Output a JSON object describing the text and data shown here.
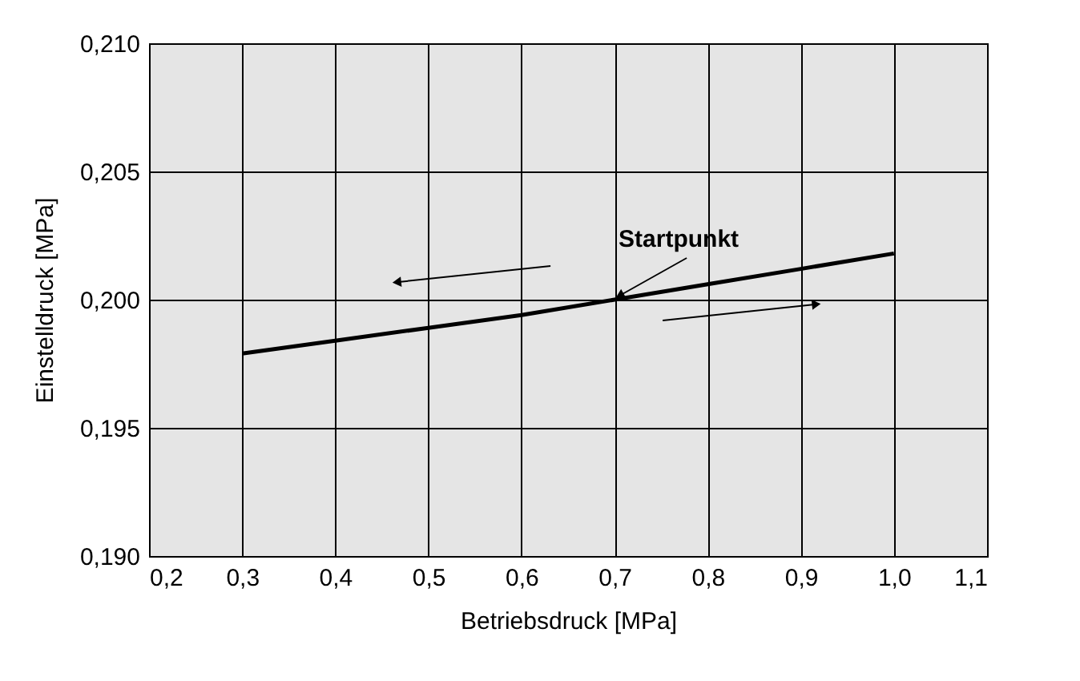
{
  "chart_data": {
    "type": "line",
    "xlabel": "Betriebsdruck [MPa]",
    "ylabel": "Einstelldruck [MPa]",
    "x": [
      0.3,
      0.4,
      0.5,
      0.6,
      0.7,
      0.8,
      0.9,
      1.0
    ],
    "series": [
      {
        "color": "#000000",
        "values": [
          0.1979,
          0.1984,
          0.1989,
          0.1994,
          0.2,
          0.2006,
          0.2012,
          0.2018
        ]
      }
    ],
    "xlim": [
      0.2,
      1.1
    ],
    "ylim": [
      0.19,
      0.21
    ],
    "xticks": [
      {
        "value": 0.2,
        "label": "0,2"
      },
      {
        "value": 0.3,
        "label": "0,3"
      },
      {
        "value": 0.4,
        "label": "0,4"
      },
      {
        "value": 0.5,
        "label": "0,5"
      },
      {
        "value": 0.6,
        "label": "0,6"
      },
      {
        "value": 0.7,
        "label": "0,7"
      },
      {
        "value": 0.8,
        "label": "0,8"
      },
      {
        "value": 0.9,
        "label": "0,9"
      },
      {
        "value": 1.0,
        "label": "1,0"
      },
      {
        "value": 1.1,
        "label": "1,1"
      }
    ],
    "yticks": [
      {
        "value": 0.19,
        "label": "0,190"
      },
      {
        "value": 0.195,
        "label": "0,195"
      },
      {
        "value": 0.2,
        "label": "0,200"
      },
      {
        "value": 0.205,
        "label": "0,205"
      },
      {
        "value": 0.21,
        "label": "0,210"
      }
    ],
    "grid": true,
    "marker": "none",
    "line_style": "solid",
    "annotations": [
      {
        "text": "Startpunkt",
        "x": 0.7,
        "y": 0.2
      }
    ]
  }
}
